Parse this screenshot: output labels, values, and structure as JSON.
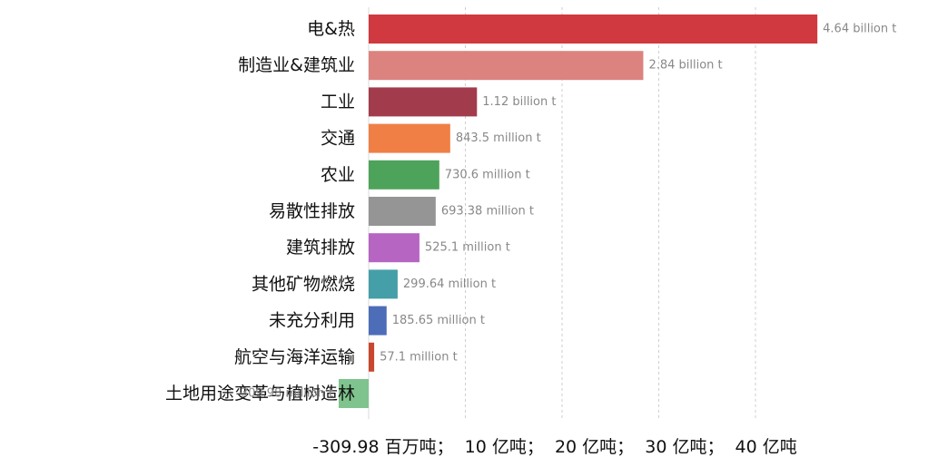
{
  "chart_data": {
    "type": "bar",
    "orientation": "horizontal",
    "categories": [
      "电&热",
      "制造业&建筑业",
      "工业",
      "交通",
      "农业",
      "易散性排放",
      "建筑排放",
      "其他矿物燃烧",
      "未充分利用",
      "航空与海洋运输",
      "土地用途变革与植树造林"
    ],
    "values": [
      4640,
      2840,
      1120,
      843.5,
      730.6,
      693.38,
      525.1,
      299.64,
      185.65,
      57.1,
      -309.98
    ],
    "value_unit": "million t",
    "value_labels": [
      "4.64 billion t",
      "2.84 billion t",
      "1.12 billion t",
      "843.5 million t",
      "730.6 million t",
      "693.38 million t",
      "525.1 million t",
      "299.64 million t",
      "185.65 million t",
      "57.1 million t",
      "-309.98 million t"
    ],
    "colors": [
      "#d0393f",
      "#dc837f",
      "#a23c4c",
      "#f07f45",
      "#4ea35a",
      "#959595",
      "#b665c3",
      "#459fa8",
      "#4e6db8",
      "#c8472e",
      "#7fc48e"
    ],
    "xlim": [
      -309.98,
      4640
    ],
    "grid_values": [
      1000,
      2000,
      3000,
      4000
    ],
    "axis_caption": "-309.98 百万吨；  10 亿吨；  20 亿吨；  30 亿吨；  40 亿吨",
    "grid": true,
    "legend": "none"
  }
}
